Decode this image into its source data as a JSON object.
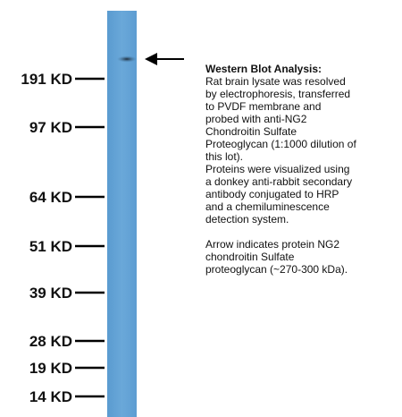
{
  "markers": [
    "191 KD",
    "97 KD",
    "64 KD",
    "51 KD",
    "39 KD",
    "28 KD",
    "19 KD",
    "14 KD"
  ],
  "caption": {
    "title": "Western Blot Analysis:",
    "paragraph_1": [
      "Rat brain lysate was resolved",
      "by electrophoresis, transferred",
      "to PVDF membrane and",
      "probed with anti-NG2",
      "Chondroitin Sulfate",
      "Proteoglycan (1:1000 dilution of",
      "this lot).",
      "Proteins were visualized using",
      "a donkey anti-rabbit secondary",
      "antibody conjugated to HRP",
      "and a chemiluminescence",
      "detection system."
    ],
    "paragraph_2": [
      "Arrow indicates protein NG2",
      "chondroitin Sulfate",
      "proteoglycan (~270-300 kDa)."
    ]
  }
}
